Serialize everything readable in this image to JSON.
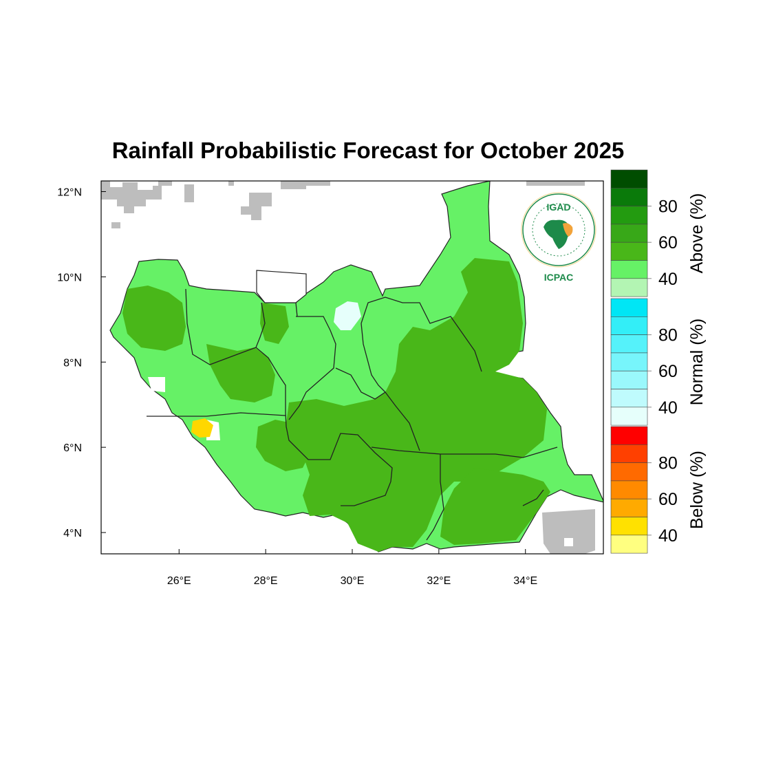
{
  "title": "Rainfall Probabilistic Forecast for October 2025",
  "map": {
    "lat_ticks": [
      {
        "value": 12,
        "label": "12°N"
      },
      {
        "value": 10,
        "label": "10°N"
      },
      {
        "value": 8,
        "label": "8°N"
      },
      {
        "value": 6,
        "label": "6°N"
      },
      {
        "value": 4,
        "label": "4°N"
      }
    ],
    "lon_ticks": [
      {
        "value": 26,
        "label": "26°E"
      },
      {
        "value": 28,
        "label": "28°E"
      },
      {
        "value": 30,
        "label": "30°E"
      },
      {
        "value": 32,
        "label": "32°E"
      },
      {
        "value": 34,
        "label": "34°E"
      }
    ],
    "colors": {
      "above_40_50": "#66f166",
      "above_50_60": "#49b719",
      "normal_low": "#e6fffb",
      "below_40_50": "#ffd700",
      "no_data": "#bdbdbd"
    }
  },
  "logo": {
    "name": "IGAD",
    "subname": "ICPAC"
  },
  "colorbar": {
    "above": {
      "title": "Above (%)",
      "colors": [
        "#004d00",
        "#0a7a0a",
        "#239b10",
        "#38a818",
        "#49b719",
        "#66f166",
        "#b3f5b3"
      ],
      "tick_labels": [
        "80",
        "60",
        "40"
      ]
    },
    "normal": {
      "title": "Normal (%)",
      "colors": [
        "#00e6f5",
        "#33eef7",
        "#55f2fa",
        "#77f5fb",
        "#9af8fc",
        "#bffbfd",
        "#e6fffb"
      ],
      "tick_labels": [
        "80",
        "60",
        "40"
      ]
    },
    "below": {
      "title": "Below (%)",
      "colors": [
        "#ff0000",
        "#ff4000",
        "#ff6a00",
        "#ff8a00",
        "#ffaa00",
        "#ffe100",
        "#ffff80"
      ],
      "tick_labels": [
        "80",
        "60",
        "40"
      ]
    }
  }
}
